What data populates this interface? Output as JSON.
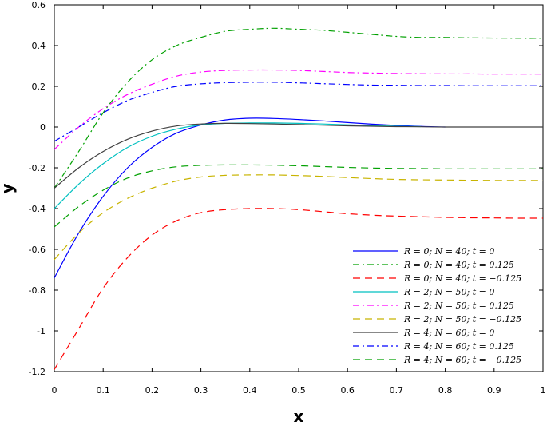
{
  "chart_data": {
    "type": "line",
    "title": "",
    "xlabel": "x",
    "ylabel": "y",
    "xlim": [
      0,
      1
    ],
    "ylim": [
      -1.2,
      0.6
    ],
    "grid": false,
    "legend_position": "bottom-right",
    "xticks": [
      "0",
      "0.1",
      "0.2",
      "0.3",
      "0.4",
      "0.5",
      "0.6",
      "0.7",
      "0.8",
      "0.9",
      "1"
    ],
    "yticks": [
      "0.6",
      "0.4",
      "0.2",
      "0",
      "-0.2",
      "-0.4",
      "-0.6",
      "-0.8",
      "-1",
      "-1.2"
    ],
    "series": [
      {
        "name": "R = 0; N = 40; t = 0",
        "color": "#0000ff",
        "style": "solid",
        "x": [
          0,
          0.05,
          0.1,
          0.15,
          0.2,
          0.25,
          0.3,
          0.35,
          0.4,
          0.45,
          0.5,
          0.55,
          0.6,
          0.65,
          0.7,
          0.75,
          0.8
        ],
        "y": [
          -0.74,
          -0.52,
          -0.34,
          -0.2,
          -0.1,
          -0.03,
          0.01,
          0.035,
          0.043,
          0.042,
          0.037,
          0.03,
          0.022,
          0.014,
          0.008,
          0.003,
          0.0
        ]
      },
      {
        "name": "R = 0; N = 40; t = 0.125",
        "color": "#00a000",
        "style": "dashdot",
        "x": [
          0,
          0.05,
          0.1,
          0.15,
          0.2,
          0.25,
          0.3,
          0.35,
          0.4,
          0.45,
          0.5,
          0.55,
          0.6,
          0.65,
          0.7,
          0.75,
          0.8,
          0.85,
          0.9,
          0.95,
          1
        ],
        "y": [
          -0.3,
          -0.12,
          0.07,
          0.22,
          0.33,
          0.4,
          0.44,
          0.47,
          0.48,
          0.485,
          0.48,
          0.475,
          0.465,
          0.455,
          0.445,
          0.44,
          0.44,
          0.438,
          0.437,
          0.436,
          0.436
        ]
      },
      {
        "name": "R = 0; N = 40; t = −0.125",
        "color": "#ff0000",
        "style": "dashed",
        "x": [
          0,
          0.05,
          0.1,
          0.15,
          0.2,
          0.25,
          0.3,
          0.35,
          0.4,
          0.45,
          0.5,
          0.55,
          0.6,
          0.65,
          0.7,
          0.75,
          0.8,
          0.85,
          0.9,
          0.95,
          1
        ],
        "y": [
          -1.19,
          -0.99,
          -0.79,
          -0.64,
          -0.53,
          -0.46,
          -0.42,
          -0.405,
          -0.4,
          -0.4,
          -0.405,
          -0.415,
          -0.425,
          -0.432,
          -0.437,
          -0.44,
          -0.443,
          -0.445,
          -0.446,
          -0.447,
          -0.447
        ]
      },
      {
        "name": "R = 2; N = 50; t = 0",
        "color": "#00c0c0",
        "style": "solid",
        "x": [
          0,
          0.05,
          0.1,
          0.15,
          0.2,
          0.25,
          0.3,
          0.35,
          0.4,
          0.45,
          0.5,
          0.55,
          0.6,
          0.65,
          0.7,
          0.75
        ],
        "y": [
          -0.4,
          -0.28,
          -0.18,
          -0.1,
          -0.045,
          -0.01,
          0.01,
          0.018,
          0.02,
          0.02,
          0.018,
          0.015,
          0.011,
          0.007,
          0.004,
          0.002
        ]
      },
      {
        "name": "R = 2; N = 50; t = 0.125",
        "color": "#ff00ff",
        "style": "dashdot",
        "x": [
          0,
          0.05,
          0.1,
          0.15,
          0.2,
          0.25,
          0.3,
          0.35,
          0.4,
          0.45,
          0.5,
          0.55,
          0.6,
          0.65,
          0.7,
          0.75,
          0.8,
          0.85,
          0.9,
          0.95,
          1
        ],
        "y": [
          -0.11,
          0.0,
          0.09,
          0.16,
          0.21,
          0.25,
          0.27,
          0.278,
          0.28,
          0.28,
          0.278,
          0.273,
          0.268,
          0.265,
          0.263,
          0.262,
          0.261,
          0.261,
          0.26,
          0.26,
          0.26
        ]
      },
      {
        "name": "R = 2; N = 50; t = −0.125",
        "color": "#c8b400",
        "style": "dashed",
        "x": [
          0,
          0.05,
          0.1,
          0.15,
          0.2,
          0.25,
          0.3,
          0.35,
          0.4,
          0.45,
          0.5,
          0.55,
          0.6,
          0.65,
          0.7,
          0.75,
          0.8,
          0.85,
          0.9,
          0.95,
          1
        ],
        "y": [
          -0.65,
          -0.52,
          -0.42,
          -0.35,
          -0.3,
          -0.265,
          -0.245,
          -0.237,
          -0.235,
          -0.235,
          -0.238,
          -0.242,
          -0.248,
          -0.253,
          -0.257,
          -0.259,
          -0.26,
          -0.261,
          -0.262,
          -0.262,
          -0.262
        ]
      },
      {
        "name": "R = 4; N = 60; t = 0",
        "color": "#404040",
        "style": "solid",
        "x": [
          0,
          0.05,
          0.1,
          0.15,
          0.2,
          0.25,
          0.3,
          0.35,
          0.4,
          0.45,
          0.5,
          0.55,
          0.6,
          0.65,
          0.7,
          0.75,
          0.8,
          0.85,
          0.9,
          0.95,
          1
        ],
        "y": [
          -0.3,
          -0.2,
          -0.12,
          -0.06,
          -0.02,
          0.005,
          0.015,
          0.018,
          0.017,
          0.015,
          0.012,
          0.009,
          0.006,
          0.004,
          0.002,
          0.001,
          0.0,
          0.0,
          0.0,
          0.0,
          0.0
        ]
      },
      {
        "name": "R = 4; N = 60; t = 0.125",
        "color": "#0000ff",
        "style": "dashdot",
        "x": [
          0,
          0.05,
          0.1,
          0.15,
          0.2,
          0.25,
          0.3,
          0.35,
          0.4,
          0.45,
          0.5,
          0.55,
          0.6,
          0.65,
          0.7,
          0.75,
          0.8,
          0.85,
          0.9,
          0.95,
          1
        ],
        "y": [
          -0.07,
          0.0,
          0.07,
          0.13,
          0.17,
          0.2,
          0.212,
          0.218,
          0.22,
          0.22,
          0.217,
          0.213,
          0.209,
          0.206,
          0.205,
          0.204,
          0.204,
          0.203,
          0.203,
          0.203,
          0.203
        ]
      },
      {
        "name": "R = 4; N = 60; t = −0.125",
        "color": "#00a000",
        "style": "dashed",
        "x": [
          0,
          0.05,
          0.1,
          0.15,
          0.2,
          0.25,
          0.3,
          0.35,
          0.4,
          0.45,
          0.5,
          0.55,
          0.6,
          0.65,
          0.7,
          0.75,
          0.8,
          0.85,
          0.9,
          0.95,
          1
        ],
        "y": [
          -0.49,
          -0.39,
          -0.31,
          -0.25,
          -0.215,
          -0.195,
          -0.188,
          -0.186,
          -0.186,
          -0.187,
          -0.19,
          -0.194,
          -0.198,
          -0.201,
          -0.203,
          -0.204,
          -0.205,
          -0.205,
          -0.205,
          -0.205,
          -0.205
        ]
      }
    ]
  }
}
